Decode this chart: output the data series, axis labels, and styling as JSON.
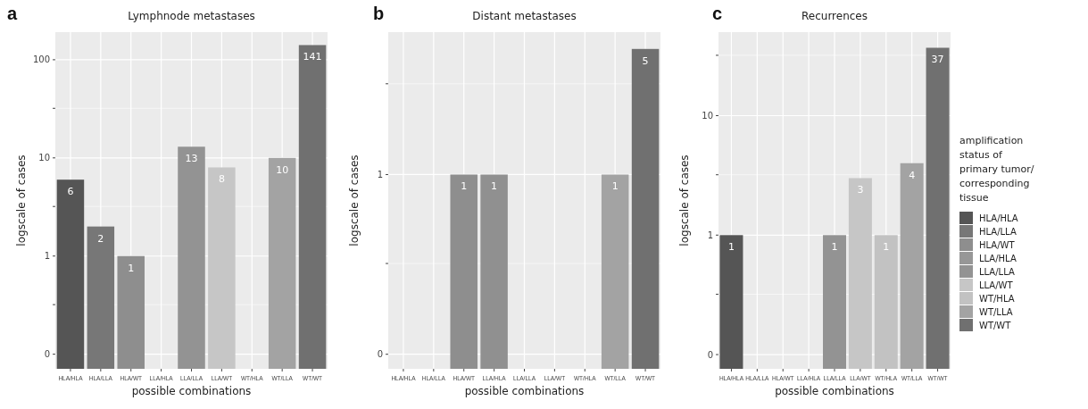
{
  "chart_data": [
    {
      "type": "bar",
      "title": "Lymphnode metastases",
      "annotations": [
        "a"
      ],
      "xlabel": "possible combinations",
      "ylabel": "logscale of cases",
      "log": "y",
      "grid": true,
      "data_labels": true,
      "categories": [
        "HLA/HLA",
        "HLA/LLA",
        "HLA/WT",
        "LLA/HLA",
        "LLA/LLA",
        "LLA/WT",
        "WT/HLA",
        "WT/LLA",
        "WT/WT"
      ],
      "values": [
        6,
        2,
        1,
        null,
        13,
        8,
        null,
        10,
        141
      ],
      "colors": [
        "#555555",
        "#777777",
        "#8e8e8e",
        null,
        "#939393",
        "#c6c6c6",
        null,
        "#a3a3a3",
        "#707070"
      ],
      "ylim": [
        0.071,
        191
      ],
      "yticks": [
        {
          "value": 0.1,
          "label": "0"
        },
        {
          "value": 0.32,
          "label": null
        },
        1,
        {
          "value": 3.2,
          "label": null
        },
        10,
        {
          "value": 32,
          "label": null
        },
        100
      ]
    },
    {
      "type": "bar",
      "title": "Distant metastases",
      "annotations": [
        "b"
      ],
      "xlabel": "possible combinations",
      "ylabel": "logscale of cases",
      "log": "y",
      "grid": true,
      "data_labels": true,
      "categories": [
        "HLA/HLA",
        "HLA/LLA",
        "HLA/WT",
        "LLA/HLA",
        "LLA/LLA",
        "LLA/WT",
        "WT/HLA",
        "WT/LLA",
        "WT/WT"
      ],
      "values": [
        null,
        null,
        1,
        1,
        null,
        null,
        null,
        1,
        5
      ],
      "colors": [
        null,
        null,
        "#8e8e8e",
        "#909090",
        null,
        null,
        null,
        "#a3a3a3",
        "#707070"
      ],
      "ylim": [
        0.083,
        6.2
      ],
      "yticks": [
        {
          "value": 0.1,
          "label": "0"
        },
        {
          "value": 0.32,
          "label": null
        },
        1,
        {
          "value": 3.2,
          "label": null
        }
      ]
    },
    {
      "type": "bar",
      "title": "Recurrences",
      "annotations": [
        "c"
      ],
      "xlabel": "possible combinations",
      "ylabel": "logscale of cases",
      "log": "y",
      "grid": true,
      "data_labels": true,
      "legend": "right",
      "legend_title": "amplification status of primary tumor/ corresponding tissue",
      "categories": [
        "HLA/HLA",
        "HLA/LLA",
        "HLA/WT",
        "LLA/HLA",
        "LLA/LLA",
        "LLA/WT",
        "WT/HLA",
        "WT/LLA",
        "WT/WT"
      ],
      "stacked": true,
      "series": [
        {
          "name": "HLA/HLA",
          "color": "#555555",
          "values": [
            1,
            null,
            null,
            null,
            null,
            null,
            null,
            null,
            null
          ]
        },
        {
          "name": "HLA/LLA",
          "color": "#777777",
          "values": [
            null,
            null,
            null,
            null,
            null,
            null,
            null,
            null,
            null
          ]
        },
        {
          "name": "HLA/WT",
          "color": "#8e8e8e",
          "values": [
            null,
            null,
            null,
            null,
            null,
            null,
            null,
            null,
            null
          ]
        },
        {
          "name": "LLA/HLA",
          "color": "#979797",
          "values": [
            null,
            null,
            null,
            null,
            null,
            null,
            null,
            null,
            null
          ]
        },
        {
          "name": "LLA/LLA",
          "color": "#939393",
          "values": [
            null,
            null,
            null,
            null,
            1,
            null,
            null,
            null,
            null
          ]
        },
        {
          "name": "LLA/WT",
          "color": "#c6c6c6",
          "values": [
            null,
            null,
            null,
            null,
            null,
            3,
            null,
            null,
            null
          ]
        },
        {
          "name": "WT/HLA",
          "color": "#c2c2c2",
          "values": [
            null,
            null,
            null,
            null,
            null,
            null,
            1,
            null,
            null
          ]
        },
        {
          "name": "WT/LLA",
          "color": "#a3a3a3",
          "values": [
            null,
            null,
            null,
            null,
            null,
            null,
            null,
            4,
            null
          ]
        },
        {
          "name": "WT/WT",
          "color": "#707070",
          "values": [
            null,
            null,
            null,
            null,
            null,
            null,
            null,
            null,
            37
          ]
        }
      ],
      "ylim": [
        0.076,
        50
      ],
      "yticks": [
        {
          "value": 0.1,
          "label": "0"
        },
        {
          "value": 0.32,
          "label": null
        },
        1,
        {
          "value": 3.2,
          "label": null
        },
        10,
        {
          "value": 32,
          "label": null
        }
      ]
    }
  ]
}
